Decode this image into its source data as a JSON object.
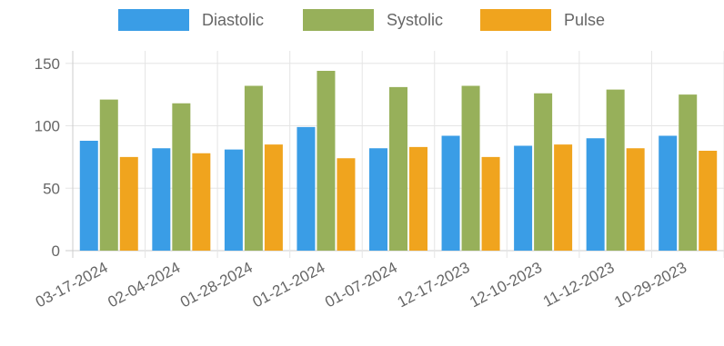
{
  "chart_data": {
    "type": "bar",
    "categories": [
      "03-17-2024",
      "02-04-2024",
      "01-28-2024",
      "01-21-2024",
      "01-07-2024",
      "12-17-2023",
      "12-10-2023",
      "11-12-2023",
      "10-29-2023"
    ],
    "series": [
      {
        "name": "Diastolic",
        "color": "#3a9de6",
        "values": [
          88,
          82,
          81,
          99,
          82,
          92,
          84,
          90,
          92
        ]
      },
      {
        "name": "Systolic",
        "color": "#97b05a",
        "values": [
          121,
          118,
          132,
          144,
          131,
          132,
          126,
          129,
          125
        ]
      },
      {
        "name": "Pulse",
        "color": "#f0a41e",
        "values": [
          75,
          78,
          85,
          74,
          83,
          75,
          85,
          82,
          80
        ]
      }
    ],
    "yticks": [
      0,
      50,
      100,
      150
    ],
    "ylim": [
      0,
      160
    ],
    "legend_position": "top",
    "grid": true
  }
}
